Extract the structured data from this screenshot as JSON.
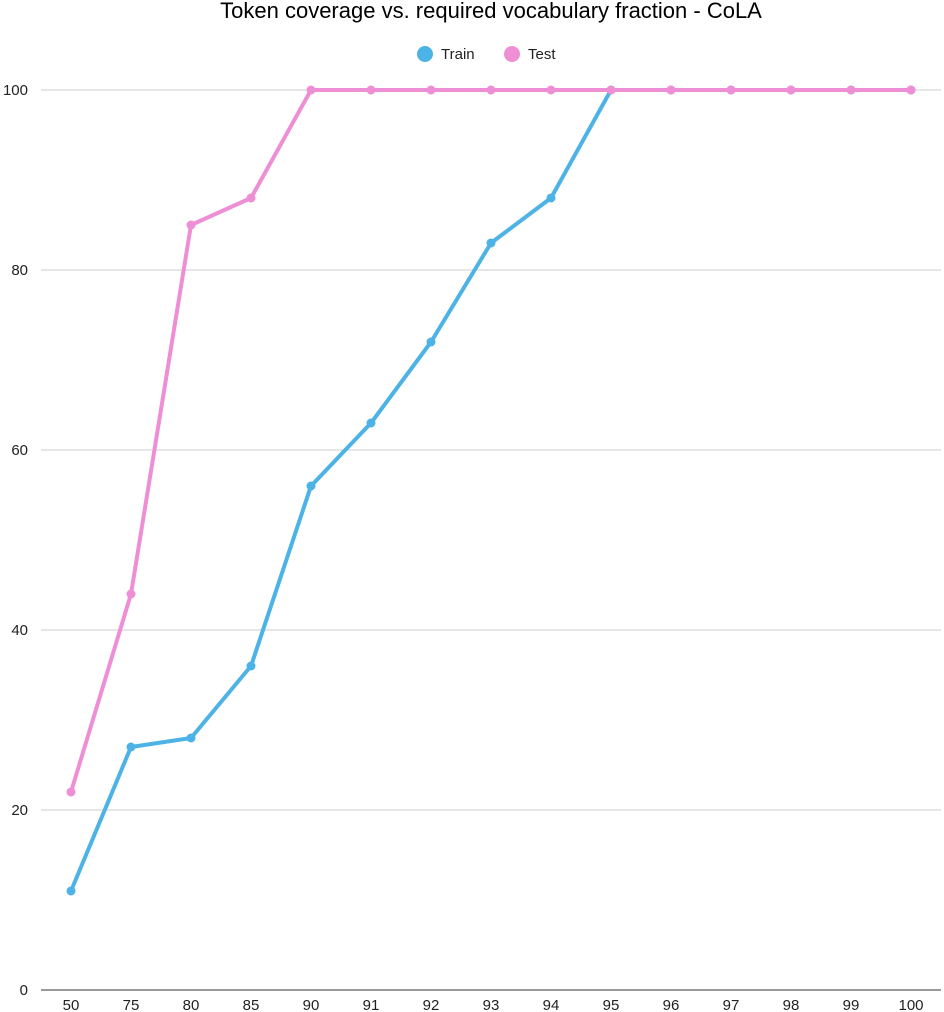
{
  "chart_data": {
    "type": "line",
    "title": "Token coverage vs. required vocabulary fraction - CoLA",
    "xlabel": "",
    "ylabel": "",
    "categories": [
      "50",
      "75",
      "80",
      "85",
      "90",
      "91",
      "92",
      "93",
      "94",
      "95",
      "96",
      "97",
      "98",
      "99",
      "100"
    ],
    "ylim": [
      0,
      100
    ],
    "yticks": [
      0,
      20,
      40,
      60,
      80,
      100
    ],
    "grid": true,
    "legend_position": "top-center",
    "series": [
      {
        "name": "Train",
        "color": "#4db3e6",
        "values": [
          11,
          27,
          28,
          36,
          56,
          63,
          72,
          83,
          88,
          100,
          100,
          100,
          100,
          100,
          100
        ]
      },
      {
        "name": "Test",
        "color": "#ee8fd6",
        "values": [
          22,
          44,
          85,
          88,
          100,
          100,
          100,
          100,
          100,
          100,
          100,
          100,
          100,
          100,
          100
        ]
      }
    ]
  }
}
